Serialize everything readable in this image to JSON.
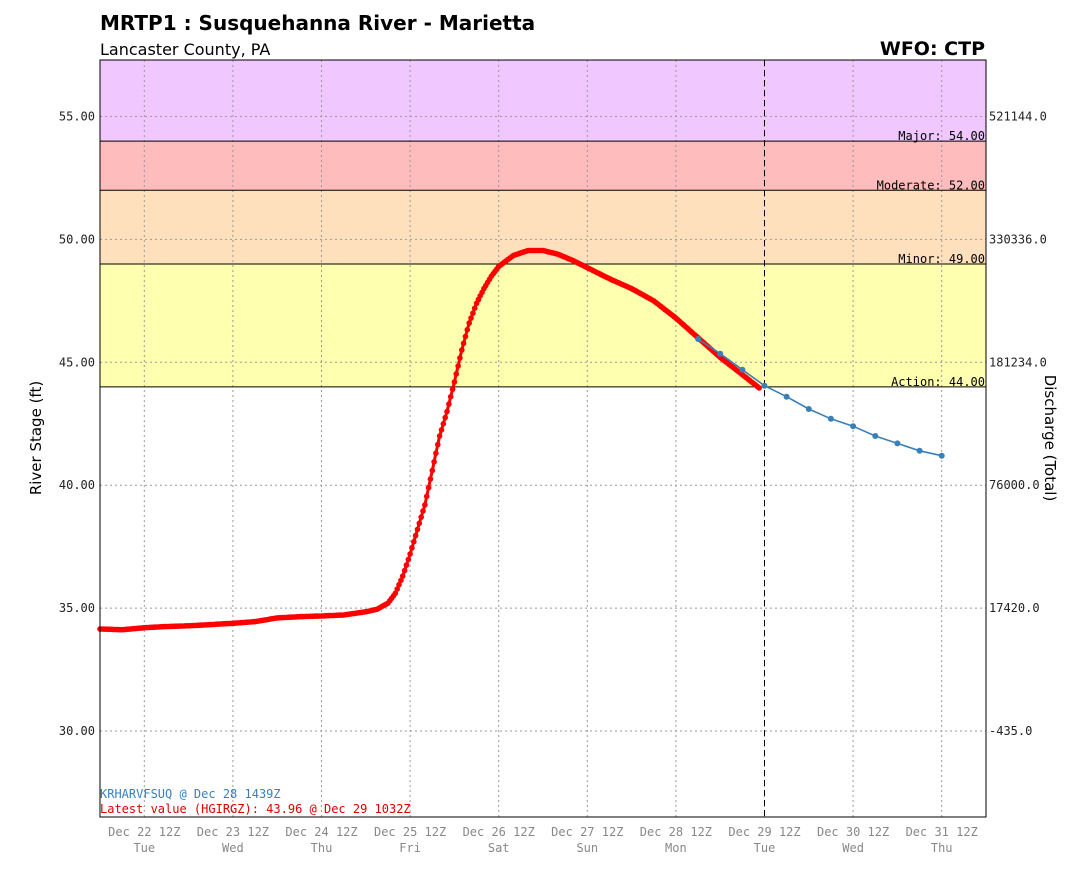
{
  "header": {
    "title": "MRTP1 : Susquehanna River - Marietta",
    "subtitle": "Lancaster County, PA",
    "wfo": "WFO: CTP"
  },
  "chart_data": {
    "type": "line",
    "ylabel": "River Stage (ft)",
    "y2label": "Discharge (Total)",
    "ylim": [
      26.5,
      57.3
    ],
    "y_ticks": [
      30,
      35,
      40,
      45,
      50,
      55
    ],
    "y_tick_labels": [
      "30.00",
      "35.00",
      "40.00",
      "45.00",
      "50.00",
      "55.00"
    ],
    "y2_ticks": [
      {
        "stage": 30,
        "label": "-435.0"
      },
      {
        "stage": 35,
        "label": "17420.0"
      },
      {
        "stage": 40,
        "label": "76000.0"
      },
      {
        "stage": 45,
        "label": "181234.0"
      },
      {
        "stage": 50,
        "label": "330336.0"
      },
      {
        "stage": 55,
        "label": "521144.0"
      }
    ],
    "x_ticks": [
      {
        "date": "Dec 22 12Z",
        "day": "Tue"
      },
      {
        "date": "Dec 23 12Z",
        "day": "Wed"
      },
      {
        "date": "Dec 24 12Z",
        "day": "Thu"
      },
      {
        "date": "Dec 25 12Z",
        "day": "Fri"
      },
      {
        "date": "Dec 26 12Z",
        "day": "Sat"
      },
      {
        "date": "Dec 27 12Z",
        "day": "Sun"
      },
      {
        "date": "Dec 28 12Z",
        "day": "Mon"
      },
      {
        "date": "Dec 29 12Z",
        "day": "Tue"
      },
      {
        "date": "Dec 30 12Z",
        "day": "Wed"
      },
      {
        "date": "Dec 31 12Z",
        "day": "Thu"
      }
    ],
    "flood_categories": [
      {
        "name": "Action",
        "stage": 44,
        "label": "Action: 44.00",
        "color": "#ffffb0"
      },
      {
        "name": "Minor",
        "stage": 49,
        "label": "Minor: 49.00",
        "color": "#ffe0bc"
      },
      {
        "name": "Moderate",
        "stage": 52,
        "label": "Moderate: 52.00",
        "color": "#ffbcbc"
      },
      {
        "name": "Major",
        "stage": 54,
        "label": "Major: 54.00",
        "color": "#f0c8ff"
      }
    ],
    "current_time": "Dec 29 12Z",
    "observed": {
      "color": "#ff0000",
      "points": [
        [
          "Dec 22 00Z",
          34.15
        ],
        [
          "Dec 22 06Z",
          34.12
        ],
        [
          "Dec 22 12Z",
          34.2
        ],
        [
          "Dec 22 18Z",
          34.25
        ],
        [
          "Dec 23 00Z",
          34.28
        ],
        [
          "Dec 23 06Z",
          34.33
        ],
        [
          "Dec 23 12Z",
          34.38
        ],
        [
          "Dec 23 18Z",
          34.45
        ],
        [
          "Dec 24 00Z",
          34.6
        ],
        [
          "Dec 24 06Z",
          34.65
        ],
        [
          "Dec 24 12Z",
          34.68
        ],
        [
          "Dec 24 18Z",
          34.72
        ],
        [
          "Dec 25 00Z",
          34.85
        ],
        [
          "Dec 25 03Z",
          34.95
        ],
        [
          "Dec 25 06Z",
          35.2
        ],
        [
          "Dec 25 08Z",
          35.6
        ],
        [
          "Dec 25 10Z",
          36.3
        ],
        [
          "Dec 25 12Z",
          37.2
        ],
        [
          "Dec 25 14Z",
          38.2
        ],
        [
          "Dec 25 16Z",
          39.2
        ],
        [
          "Dec 25 18Z",
          40.6
        ],
        [
          "Dec 25 20Z",
          42.0
        ],
        [
          "Dec 25 22Z",
          43.0
        ],
        [
          "Dec 26 00Z",
          44.2
        ],
        [
          "Dec 26 02Z",
          45.5
        ],
        [
          "Dec 26 04Z",
          46.6
        ],
        [
          "Dec 26 06Z",
          47.4
        ],
        [
          "Dec 26 08Z",
          48.0
        ],
        [
          "Dec 26 10Z",
          48.5
        ],
        [
          "Dec 26 12Z",
          48.9
        ],
        [
          "Dec 26 16Z",
          49.35
        ],
        [
          "Dec 26 20Z",
          49.55
        ],
        [
          "Dec 27 00Z",
          49.55
        ],
        [
          "Dec 27 04Z",
          49.4
        ],
        [
          "Dec 27 08Z",
          49.15
        ],
        [
          "Dec 27 12Z",
          48.85
        ],
        [
          "Dec 27 18Z",
          48.4
        ],
        [
          "Dec 28 00Z",
          48.0
        ],
        [
          "Dec 28 06Z",
          47.5
        ],
        [
          "Dec 28 12Z",
          46.8
        ],
        [
          "Dec 28 18Z",
          46.0
        ],
        [
          "Dec 29 00Z",
          45.2
        ],
        [
          "Dec 29 06Z",
          44.5
        ],
        [
          "Dec 29 1032Z",
          43.96
        ]
      ]
    },
    "forecast": {
      "color": "#3a7fb8",
      "points": [
        [
          "Dec 28 18Z",
          45.95
        ],
        [
          "Dec 29 00Z",
          45.35
        ],
        [
          "Dec 29 06Z",
          44.7
        ],
        [
          "Dec 29 12Z",
          44.05
        ],
        [
          "Dec 29 18Z",
          43.6
        ],
        [
          "Dec 30 00Z",
          43.1
        ],
        [
          "Dec 30 06Z",
          42.7
        ],
        [
          "Dec 30 12Z",
          42.4
        ],
        [
          "Dec 30 18Z",
          42.0
        ],
        [
          "Dec 31 00Z",
          41.7
        ],
        [
          "Dec 31 06Z",
          41.4
        ],
        [
          "Dec 31 12Z",
          41.2
        ]
      ]
    }
  },
  "notes": {
    "forecast_issued": "KRHARVFSUQ @ Dec 28 1439Z",
    "latest_value": "Latest value (HGIRGZ): 43.96 @ Dec 29 1032Z"
  }
}
